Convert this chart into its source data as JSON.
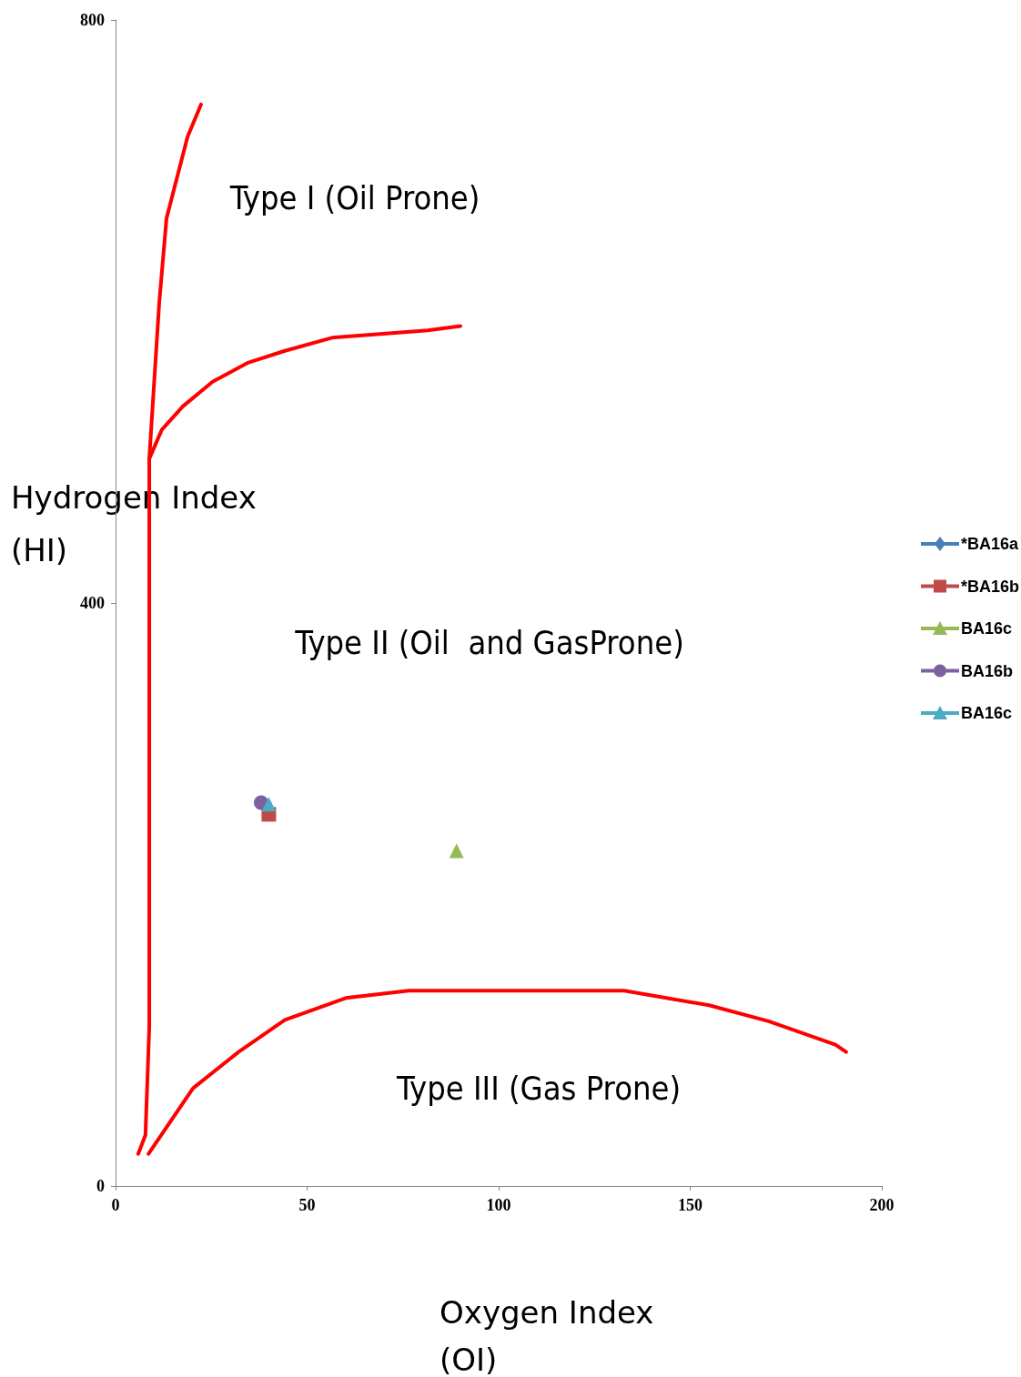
{
  "chart_data": {
    "type": "scatter",
    "xlabel": "Oxygen Index (OI)",
    "ylabel": "Hydrogen Index (HI)",
    "xlim": [
      0,
      200
    ],
    "xticks": [
      0,
      50,
      100,
      150,
      200
    ],
    "ylim": [
      0,
      800
    ],
    "yticks": [
      0,
      400,
      800
    ],
    "grid": false,
    "legend": "right",
    "annotations": [
      "Type I (Oil Prone)",
      "Type II (Oil  and GasProne)",
      "Type III (Gas Prone)"
    ],
    "series": [
      {
        "type": "line",
        "color": "#ff0000",
        "marker": "none",
        "x": [
          5.9,
          7.8,
          8.8,
          8.8,
          11.4,
          13.3,
          18.8,
          22.3
        ],
        "values": [
          22,
          35,
          109,
          499,
          606,
          664,
          720,
          742
        ]
      },
      {
        "type": "line",
        "color": "#ff0000",
        "marker": "none",
        "x": [
          8.8,
          12.1,
          17.6,
          25.4,
          34.7,
          44.2,
          56.5,
          81.5,
          90
        ],
        "values": [
          499,
          519,
          535,
          552,
          565,
          573,
          582,
          587,
          590
        ]
      },
      {
        "type": "line",
        "color": "#ff0000",
        "marker": "none",
        "x": [
          8.6,
          20.2,
          32.1,
          44.2,
          60.1,
          76.5,
          99.8,
          132.8,
          154.9,
          170.5,
          187.9,
          190.7
        ],
        "values": [
          22,
          67,
          92,
          114,
          129,
          134,
          134,
          134,
          124,
          113,
          97,
          92
        ]
      },
      {
        "name": "*BA16a",
        "color": "#4a7ebb",
        "marker": "diamond"
      },
      {
        "name": "*BA16b",
        "color": "#be4b48",
        "marker": "square",
        "x": [
          40
        ],
        "values": [
          255
        ]
      },
      {
        "name": "BA16c",
        "color": "#98b954",
        "marker": "triangle",
        "x": [
          89
        ],
        "values": [
          230
        ]
      },
      {
        "name": "BA16b",
        "color": "#7d60a0",
        "marker": "circle",
        "x": [
          38
        ],
        "values": [
          263
        ]
      },
      {
        "name": "BA16c",
        "color": "#4bacc6",
        "marker": "triangle",
        "x": [
          40
        ],
        "values": [
          262
        ]
      }
    ]
  }
}
